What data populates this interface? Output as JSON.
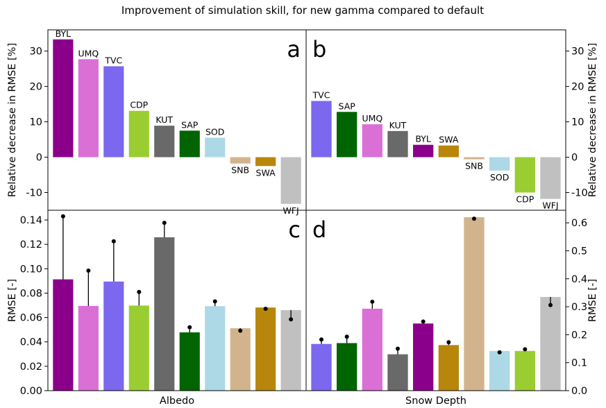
{
  "title": "Improvement of simulation skill, for new gamma compared to default",
  "chart_data": [
    {
      "panel": "a",
      "type": "bar",
      "ylabel": "Relative decrease in RMSE [%]",
      "ylim": [
        -15,
        36
      ],
      "yticks": [
        -10,
        0,
        10,
        20,
        30
      ],
      "categories": [
        "BYL",
        "UMQ",
        "TVC",
        "CDP",
        "KUT",
        "SAP",
        "SOD",
        "SNB",
        "SWA",
        "WFJ"
      ],
      "values": [
        33.3,
        27.7,
        25.7,
        13.1,
        8.9,
        7.5,
        5.5,
        -1.8,
        -2.5,
        -13.2
      ],
      "colors": [
        "#8b008b",
        "#da70d6",
        "#7b68ee",
        "#9acd32",
        "#696969",
        "#006400",
        "#add8e6",
        "#d2b48c",
        "#b8860b",
        "#c0c0c0"
      ]
    },
    {
      "panel": "b",
      "type": "bar",
      "ylim": [
        -15,
        36
      ],
      "yticks": [
        -10,
        0,
        10,
        20,
        30
      ],
      "categories": [
        "TVC",
        "SAP",
        "UMQ",
        "KUT",
        "BYL",
        "SWA",
        "SNB",
        "SOD",
        "CDP",
        "WFJ"
      ],
      "values": [
        15.9,
        12.8,
        9.3,
        7.4,
        3.5,
        3.3,
        -0.6,
        -3.8,
        -10.0,
        -11.8
      ],
      "colors": [
        "#7b68ee",
        "#006400",
        "#da70d6",
        "#696969",
        "#8b008b",
        "#b8860b",
        "#d2b48c",
        "#add8e6",
        "#9acd32",
        "#c0c0c0"
      ]
    },
    {
      "panel": "c",
      "type": "bar",
      "xlabel": "Albedo",
      "ylabel": "RMSE [-]",
      "ylim": [
        0,
        0.148
      ],
      "yticks": [
        "0.00",
        "0.02",
        "0.04",
        "0.06",
        "0.08",
        "0.10",
        "0.12",
        "0.14"
      ],
      "categories": [
        "BYL",
        "UMQ",
        "TVC",
        "CDP",
        "KUT",
        "SAP",
        "SOD",
        "SNB",
        "SWA",
        "WFJ"
      ],
      "values": [
        0.0913,
        0.0695,
        0.0895,
        0.0698,
        0.1258,
        0.0478,
        0.0693,
        0.0512,
        0.0682,
        0.0661
      ],
      "default": [
        0.143,
        0.0985,
        0.1225,
        0.081,
        0.1377,
        0.052,
        0.0732,
        0.0492,
        0.0672,
        0.0585
      ],
      "colors": [
        "#8b008b",
        "#da70d6",
        "#7b68ee",
        "#9acd32",
        "#696969",
        "#006400",
        "#add8e6",
        "#d2b48c",
        "#b8860b",
        "#c0c0c0"
      ]
    },
    {
      "panel": "d",
      "type": "bar",
      "xlabel": "Snow Depth",
      "ylabel": "RMSE [-]",
      "ylim": [
        0,
        0.645
      ],
      "yticks": [
        "0.0",
        "0.1",
        "0.2",
        "0.3",
        "0.4",
        "0.5",
        "0.6"
      ],
      "categories": [
        "TVC",
        "SAP",
        "UMQ",
        "KUT",
        "BYL",
        "SWA",
        "SNB",
        "SOD",
        "CDP",
        "WFJ"
      ],
      "values": [
        0.167,
        0.17,
        0.293,
        0.13,
        0.24,
        0.163,
        0.62,
        0.142,
        0.142,
        0.335
      ],
      "default": [
        0.183,
        0.193,
        0.318,
        0.15,
        0.247,
        0.173,
        0.615,
        0.137,
        0.148,
        0.306
      ],
      "colors": [
        "#7b68ee",
        "#006400",
        "#da70d6",
        "#696969",
        "#8b008b",
        "#b8860b",
        "#d2b48c",
        "#add8e6",
        "#9acd32",
        "#c0c0c0"
      ]
    }
  ]
}
